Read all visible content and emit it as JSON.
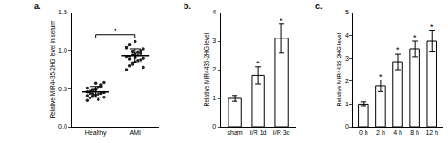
{
  "chart_data": [
    {
      "label": "a.",
      "type": "scatter",
      "categories": [
        "Healthy",
        "AMI"
      ],
      "values": [
        [
          0.35,
          0.38,
          0.4,
          0.42,
          0.43,
          0.44,
          0.45,
          0.46,
          0.47,
          0.48,
          0.5,
          0.52,
          0.55,
          0.58,
          0.41,
          0.44,
          0.47,
          0.49,
          0.36,
          0.53,
          0.39,
          0.51,
          0.46,
          0.43,
          0.57
        ],
        [
          0.75,
          0.8,
          0.82,
          0.85,
          0.87,
          0.88,
          0.9,
          0.92,
          0.93,
          0.95,
          0.96,
          0.98,
          1.0,
          1.02,
          1.05,
          1.08,
          0.84,
          0.91,
          0.94,
          0.97,
          0.78,
          1.03,
          0.89,
          0.99,
          1.12
        ]
      ],
      "means": [
        0.46,
        0.93
      ],
      "errors": [
        0.07,
        0.09
      ],
      "color": "#222222",
      "ylabel": "Relative MIR4435-2HG level in serum",
      "ylim": [
        0,
        1.5
      ],
      "yticks": [
        {
          "value": 0,
          "label": "0.0"
        },
        {
          "value": 0.5,
          "label": "0.5"
        },
        {
          "value": 1,
          "label": "1.0"
        },
        {
          "value": 1.5,
          "label": "1.5"
        }
      ],
      "annotations": [
        {
          "text": "*",
          "between": [
            "Healthy",
            "AMI"
          ]
        }
      ]
    },
    {
      "label": "b.",
      "type": "bar",
      "categories": [
        "sham",
        "I/R 1d",
        "I/R 3d"
      ],
      "values": [
        1.0,
        1.8,
        3.1
      ],
      "errors": [
        0.1,
        0.3,
        0.5
      ],
      "color": "#ffffff",
      "ylabel": "Relative MIR4435-2HG level",
      "ylim": [
        0,
        4
      ],
      "yticks": [
        0,
        1,
        2,
        3,
        4
      ],
      "annotations": [
        {
          "text": "*",
          "at": "I/R 1d"
        },
        {
          "text": "*",
          "at": "I/R 3d"
        }
      ]
    },
    {
      "label": "c.",
      "type": "bar",
      "categories": [
        "0 h",
        "2 h",
        "4 h",
        "8 h",
        "12 h"
      ],
      "values": [
        1.0,
        1.8,
        2.85,
        3.4,
        3.75
      ],
      "errors": [
        0.1,
        0.25,
        0.35,
        0.35,
        0.45
      ],
      "color": "#ffffff",
      "ylabel": "Relative MIR4435-2HG level",
      "ylim": [
        0,
        5
      ],
      "yticks": [
        0,
        1,
        2,
        3,
        4,
        5
      ],
      "annotations": [
        {
          "text": "*",
          "at": "2 h"
        },
        {
          "text": "*",
          "at": "4 h"
        },
        {
          "text": "*",
          "at": "8 h"
        },
        {
          "text": "*",
          "at": "12 h"
        }
      ]
    }
  ]
}
